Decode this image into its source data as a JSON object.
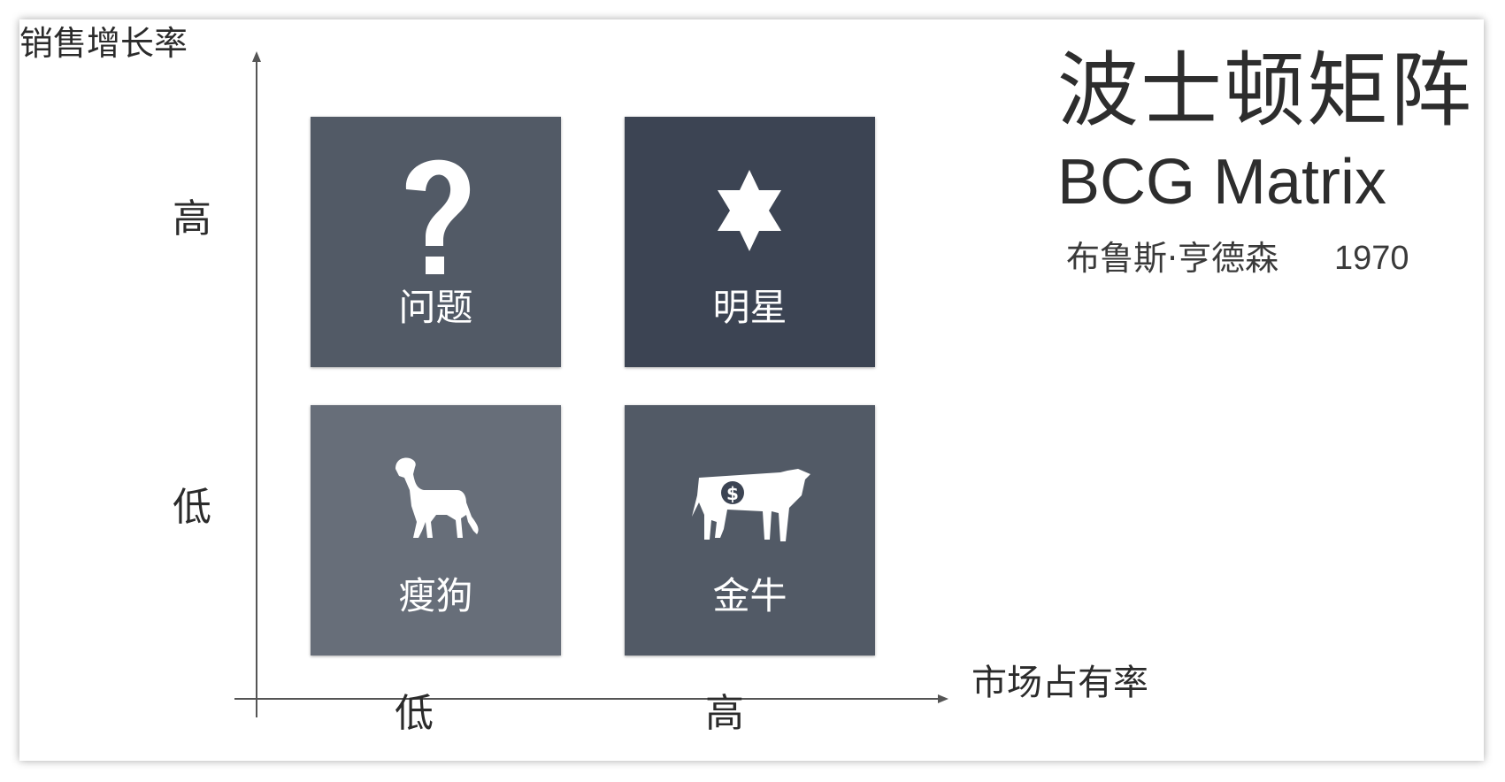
{
  "diagram": {
    "y_axis": {
      "title": "销售增长率",
      "high": "高",
      "low": "低"
    },
    "x_axis": {
      "title": "市场占有率",
      "low": "低",
      "high": "高"
    },
    "title_cn": "波士顿矩阵",
    "title_en": "BCG Matrix",
    "author": "布鲁斯·亨德森",
    "year": "1970",
    "quadrants": [
      {
        "label": "问题",
        "icon": "question-mark-icon",
        "color": "#525a66"
      },
      {
        "label": "明星",
        "icon": "star-icon",
        "color": "#3c4453"
      },
      {
        "label": "瘦狗",
        "icon": "dog-icon",
        "color": "#676e79"
      },
      {
        "label": "金牛",
        "icon": "cow-icon",
        "color": "#525a66"
      }
    ]
  }
}
